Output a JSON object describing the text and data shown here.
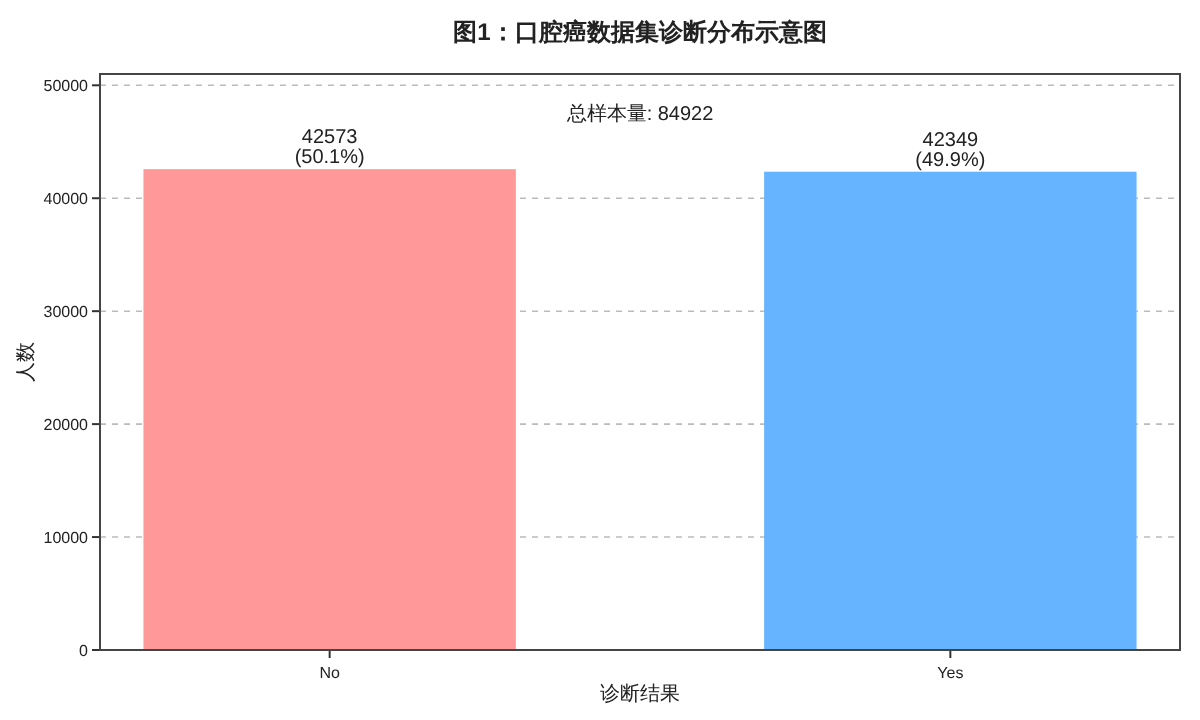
{
  "chart_data": {
    "type": "bar",
    "title": "图1：口腔癌数据集诊断分布示意图",
    "xlabel": "诊断结果",
    "ylabel": "人数",
    "categories": [
      "No",
      "Yes"
    ],
    "values": [
      42573,
      42349
    ],
    "colors": [
      "#ff9999",
      "#66b3ff"
    ],
    "value_labels": [
      "42573\n(50.1%)",
      "42349\n(49.9%)"
    ],
    "annotations": [
      "总样本量: 84922"
    ],
    "ylim": [
      0,
      51000
    ],
    "yticks": [
      0,
      10000,
      20000,
      30000,
      40000,
      50000
    ],
    "grid": "y"
  }
}
